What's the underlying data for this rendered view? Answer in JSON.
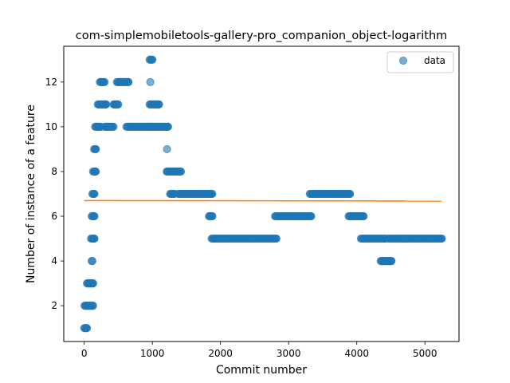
{
  "chart_data": {
    "type": "scatter",
    "title": "com-simplemobiletools-gallery-pro_companion_object-logarithm",
    "xlabel": "Commit number",
    "ylabel": "Number of instance of a feature",
    "xlim": [
      -300,
      5500
    ],
    "ylim": [
      0.4,
      13.6
    ],
    "xticks": [
      0,
      1000,
      2000,
      3000,
      4000,
      5000
    ],
    "yticks": [
      2,
      4,
      6,
      8,
      10,
      12
    ],
    "grid": false,
    "legend": {
      "position": "top-right",
      "entries": [
        "data"
      ]
    },
    "colors": {
      "data": "#1f77b4",
      "trend": "#ff7f0e"
    },
    "series": [
      {
        "name": "data",
        "kind": "scatter",
        "segments": [
          {
            "x_start": 0,
            "x_end": 40,
            "y": 1
          },
          {
            "x_start": 5,
            "x_end": 40,
            "y": 2
          },
          {
            "x_start": 40,
            "x_end": 70,
            "y": 3
          },
          {
            "x_start": 40,
            "x_end": 130,
            "y": 2
          },
          {
            "x_start": 70,
            "x_end": 130,
            "y": 3
          },
          {
            "x_start": 100,
            "x_end": 150,
            "y": 5
          },
          {
            "x_start": 110,
            "x_end": 120,
            "y": 4
          },
          {
            "x_start": 110,
            "x_end": 150,
            "y": 6
          },
          {
            "x_start": 120,
            "x_end": 150,
            "y": 7
          },
          {
            "x_start": 130,
            "x_end": 170,
            "y": 8
          },
          {
            "x_start": 145,
            "x_end": 170,
            "y": 9
          },
          {
            "x_start": 160,
            "x_end": 240,
            "y": 10
          },
          {
            "x_start": 200,
            "x_end": 320,
            "y": 11
          },
          {
            "x_start": 230,
            "x_end": 300,
            "y": 12
          },
          {
            "x_start": 300,
            "x_end": 430,
            "y": 10
          },
          {
            "x_start": 430,
            "x_end": 500,
            "y": 11
          },
          {
            "x_start": 480,
            "x_end": 650,
            "y": 12
          },
          {
            "x_start": 620,
            "x_end": 1000,
            "y": 10
          },
          {
            "x_start": 960,
            "x_end": 1000,
            "y": 13
          },
          {
            "x_start": 960,
            "x_end": 1100,
            "y": 11
          },
          {
            "x_start": 1000,
            "x_end": 1230,
            "y": 10
          },
          {
            "x_start": 1210,
            "x_end": 1420,
            "y": 8
          },
          {
            "x_start": 1260,
            "x_end": 1320,
            "y": 7
          },
          {
            "x_start": 1380,
            "x_end": 1880,
            "y": 7
          },
          {
            "x_start": 1830,
            "x_end": 1880,
            "y": 6
          },
          {
            "x_start": 1870,
            "x_end": 2820,
            "y": 5
          },
          {
            "x_start": 2800,
            "x_end": 3330,
            "y": 6
          },
          {
            "x_start": 3310,
            "x_end": 3900,
            "y": 7
          },
          {
            "x_start": 3880,
            "x_end": 4100,
            "y": 6
          },
          {
            "x_start": 4060,
            "x_end": 4420,
            "y": 5
          },
          {
            "x_start": 4350,
            "x_end": 4510,
            "y": 4
          },
          {
            "x_start": 4460,
            "x_end": 5250,
            "y": 5
          }
        ],
        "points": [
          {
            "x": 970,
            "y": 12
          },
          {
            "x": 1215,
            "y": 9
          }
        ]
      },
      {
        "name": "",
        "kind": "line",
        "x": [
          0,
          5250
        ],
        "y": [
          6.7,
          6.68
        ]
      }
    ]
  }
}
